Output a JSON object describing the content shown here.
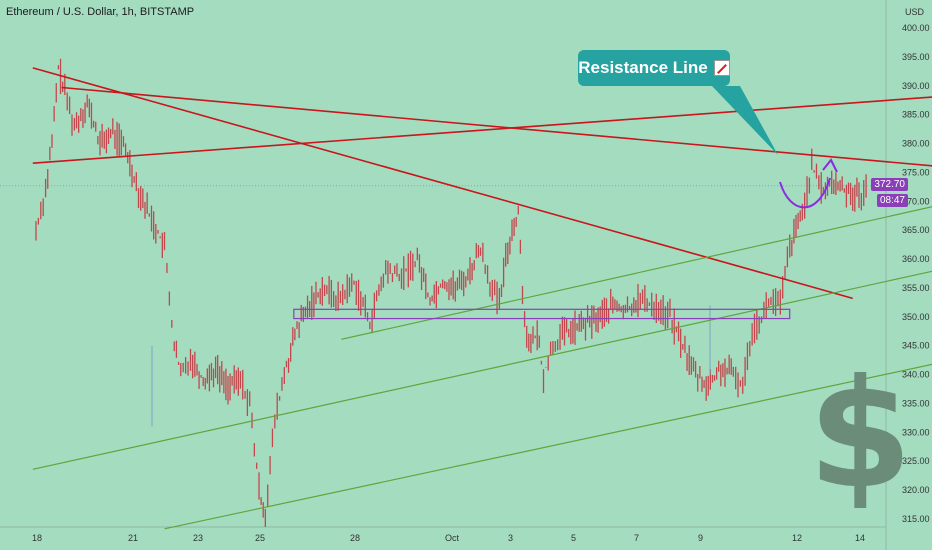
{
  "header": {
    "title": "Ethereum / U.S. Dollar, 1h, BITSTAMP"
  },
  "callout": {
    "text": "Resistance Line"
  },
  "price": {
    "last": "372.70",
    "countdown": "08:47",
    "currency": "USD"
  },
  "colors": {
    "background": "#a4dcc0",
    "candle": "#c2474d",
    "resistance": "#c8161c",
    "channel": "#5fa53b",
    "zone": "#8a3fb8",
    "arrow": "#8a2be2",
    "callout": "#26a3a1",
    "dollar": "#6b8c78"
  },
  "icons": {
    "dollar": "$",
    "checklist": "check-mark-icon"
  },
  "chart_data": {
    "type": "line",
    "x_ticks": [
      "18",
      "21",
      "23",
      "25",
      "28",
      "Oct",
      "3",
      "5",
      "7",
      "9",
      "12",
      "14"
    ],
    "y_ticks": [
      "315.00",
      "320.00",
      "325.00",
      "330.00",
      "335.00",
      "340.00",
      "345.00",
      "350.00",
      "355.00",
      "360.00",
      "365.00",
      "370.00",
      "375.00",
      "380.00",
      "385.00",
      "390.00",
      "395.00",
      "400.00"
    ],
    "ylim": [
      313,
      403
    ],
    "ylabel": "USD",
    "series": [
      {
        "values": [
          [
            0,
            365
          ],
          [
            0.3,
            372
          ],
          [
            0.5,
            380
          ],
          [
            0.7,
            393
          ],
          [
            0.9,
            389
          ],
          [
            1.2,
            383
          ],
          [
            1.6,
            387
          ],
          [
            2,
            380
          ],
          [
            2.4,
            382
          ],
          [
            2.8,
            379
          ],
          [
            3.2,
            372
          ],
          [
            3.6,
            367
          ],
          [
            4,
            362
          ],
          [
            4.3,
            345
          ],
          [
            4.5,
            340
          ],
          [
            4.8,
            343
          ],
          [
            5.2,
            339
          ],
          [
            5.6,
            341
          ],
          [
            6,
            338
          ],
          [
            6.4,
            339
          ],
          [
            6.7,
            335
          ],
          [
            7,
            320
          ],
          [
            7.2,
            316
          ],
          [
            7.5,
            332
          ],
          [
            7.8,
            340
          ],
          [
            8.2,
            348
          ],
          [
            8.6,
            352
          ],
          [
            9,
            355
          ],
          [
            9.5,
            353
          ],
          [
            10,
            356
          ],
          [
            10.5,
            349
          ],
          [
            11,
            358
          ],
          [
            11.5,
            357
          ],
          [
            12,
            360
          ],
          [
            12.4,
            353
          ],
          [
            12.8,
            356
          ],
          [
            13.2,
            355
          ],
          [
            13.6,
            357
          ],
          [
            14,
            362
          ],
          [
            14.3,
            356
          ],
          [
            14.6,
            352
          ],
          [
            14.8,
            360
          ],
          [
            15,
            365
          ],
          [
            15.2,
            368
          ],
          [
            15.4,
            349
          ],
          [
            15.6,
            345
          ],
          [
            15.8,
            347
          ],
          [
            16,
            340
          ],
          [
            16.3,
            345
          ],
          [
            16.6,
            347
          ],
          [
            17,
            348
          ],
          [
            17.4,
            349
          ],
          [
            17.8,
            350
          ],
          [
            18.2,
            352
          ],
          [
            18.6,
            351
          ],
          [
            19,
            353
          ],
          [
            19.5,
            352
          ],
          [
            20,
            350
          ],
          [
            20.4,
            345
          ],
          [
            20.8,
            340
          ],
          [
            21.2,
            338
          ],
          [
            21.6,
            341
          ],
          [
            22,
            340
          ],
          [
            22.3,
            338
          ],
          [
            22.6,
            348
          ],
          [
            22.9,
            350
          ],
          [
            23.2,
            353
          ],
          [
            23.5,
            352
          ],
          [
            23.8,
            362
          ],
          [
            24.2,
            368
          ],
          [
            24.5,
            376
          ],
          [
            24.8,
            372
          ],
          [
            25.2,
            373
          ],
          [
            25.6,
            372
          ],
          [
            26,
            371
          ],
          [
            26.3,
            372
          ]
        ]
      }
    ],
    "annotations": [
      {
        "type": "resistance-line",
        "from": [
          -0.1,
          376.6
        ],
        "to": [
          29.2,
          388.4
        ]
      },
      {
        "type": "resistance-line",
        "from": [
          0.8,
          389.7
        ],
        "to": [
          29.2,
          375.7
        ]
      },
      {
        "type": "resistance-line",
        "from": [
          -0.1,
          393.1
        ],
        "to": [
          25.8,
          353.2
        ]
      },
      {
        "type": "channel-line",
        "from": [
          9.6,
          346.1
        ],
        "to": [
          28.6,
          369.4
        ]
      },
      {
        "type": "channel-line",
        "from": [
          -0.1,
          323.6
        ],
        "to": [
          29.0,
          358.7
        ]
      },
      {
        "type": "channel-line",
        "from": [
          4,
          313.3
        ],
        "to": [
          29.2,
          342.8
        ]
      },
      {
        "type": "zone",
        "from": [
          8.1,
          351.3
        ],
        "to": [
          23.8,
          349.7
        ]
      }
    ],
    "grid": false,
    "legend": "none"
  }
}
